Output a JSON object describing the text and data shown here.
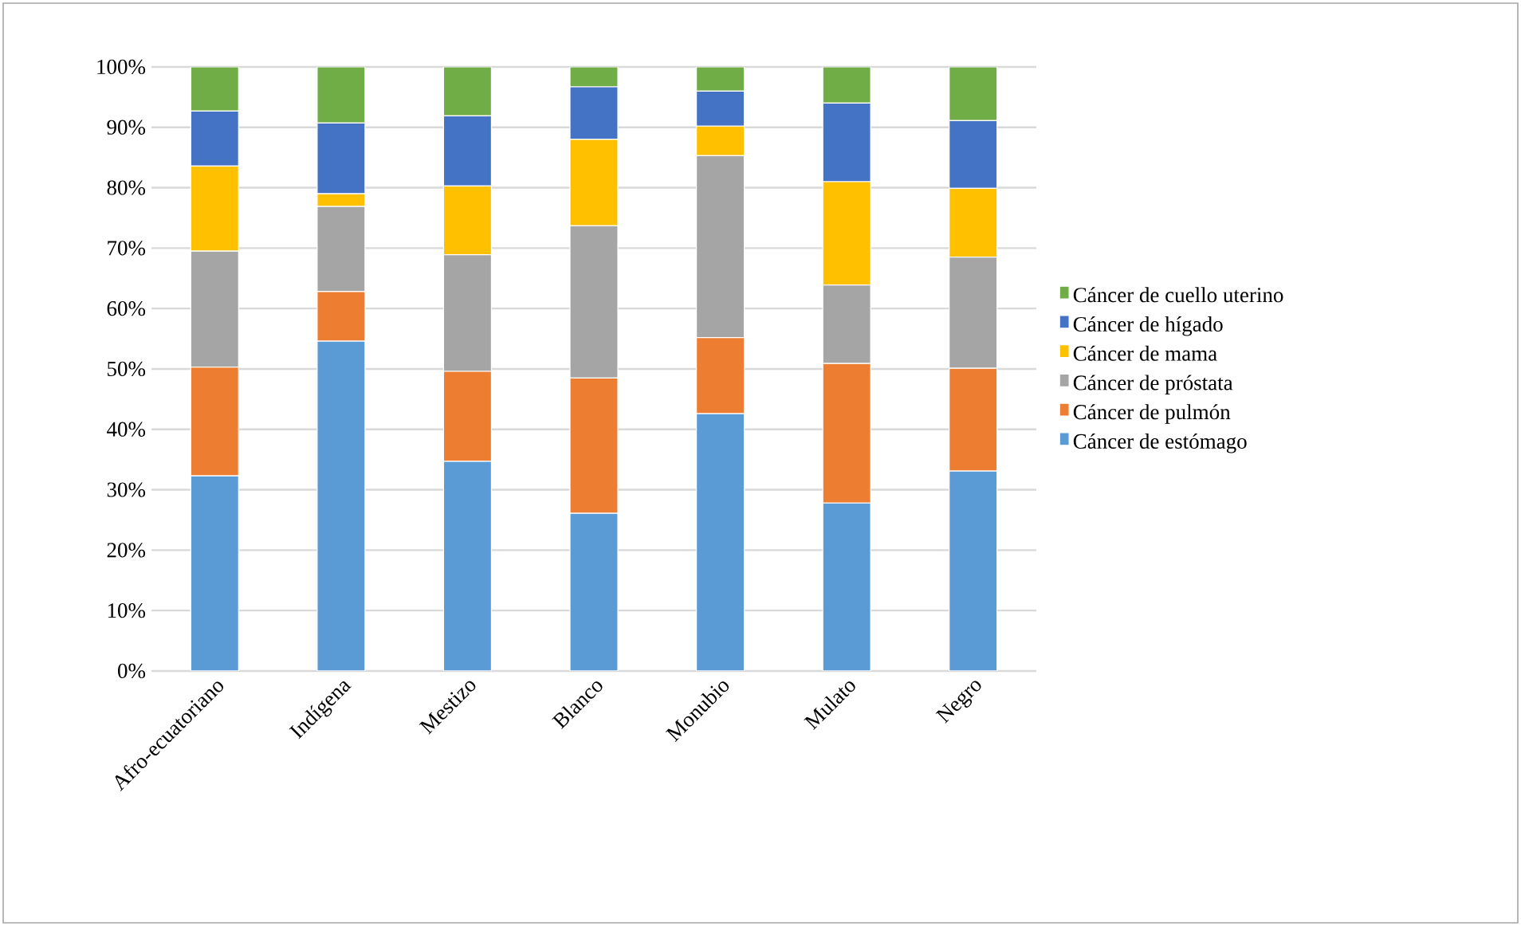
{
  "chart_data": {
    "type": "bar",
    "stacked": true,
    "grid": "y",
    "legend": "right",
    "categories": [
      "Afro-ecuatoriano",
      "Indígena",
      "Mestizo",
      "Blanco",
      "Monubio",
      "Mulato",
      "Negro"
    ],
    "ylim": [
      0,
      100
    ],
    "yticks": [
      {
        "value": 0,
        "label": "0%"
      },
      {
        "value": 10,
        "label": "10%"
      },
      {
        "value": 20,
        "label": "20%"
      },
      {
        "value": 30,
        "label": "30%"
      },
      {
        "value": 40,
        "label": "40%"
      },
      {
        "value": 50,
        "label": "50%"
      },
      {
        "value": 60,
        "label": "60%"
      },
      {
        "value": 70,
        "label": "70%"
      },
      {
        "value": 80,
        "label": "80%"
      },
      {
        "value": 90,
        "label": "90%"
      },
      {
        "value": 100,
        "label": "100%"
      }
    ],
    "series": [
      {
        "name": "Cáncer de estómago",
        "color": "#5b9bd5",
        "values": [
          32.3,
          54.6,
          34.7,
          26.1,
          42.6,
          27.8,
          33.1
        ]
      },
      {
        "name": "Cáncer de pulmón",
        "color": "#ed7d31",
        "values": [
          18.0,
          8.2,
          14.9,
          22.4,
          12.6,
          23.1,
          17.0
        ]
      },
      {
        "name": "Cáncer de próstata",
        "color": "#a5a5a5",
        "values": [
          19.2,
          14.1,
          19.3,
          25.2,
          30.1,
          13.0,
          18.4
        ]
      },
      {
        "name": "Cáncer de mama",
        "color": "#ffc000",
        "values": [
          14.1,
          2.1,
          11.4,
          14.3,
          4.9,
          17.1,
          11.4
        ]
      },
      {
        "name": "Cáncer de hígado",
        "color": "#4472c4",
        "values": [
          9.1,
          11.7,
          11.6,
          8.7,
          5.8,
          13.0,
          11.2
        ]
      },
      {
        "name": "Cáncer de cuello uterino",
        "color": "#70ad47",
        "values": [
          7.3,
          9.3,
          8.1,
          3.3,
          4.0,
          6.0,
          8.9
        ]
      }
    ]
  }
}
